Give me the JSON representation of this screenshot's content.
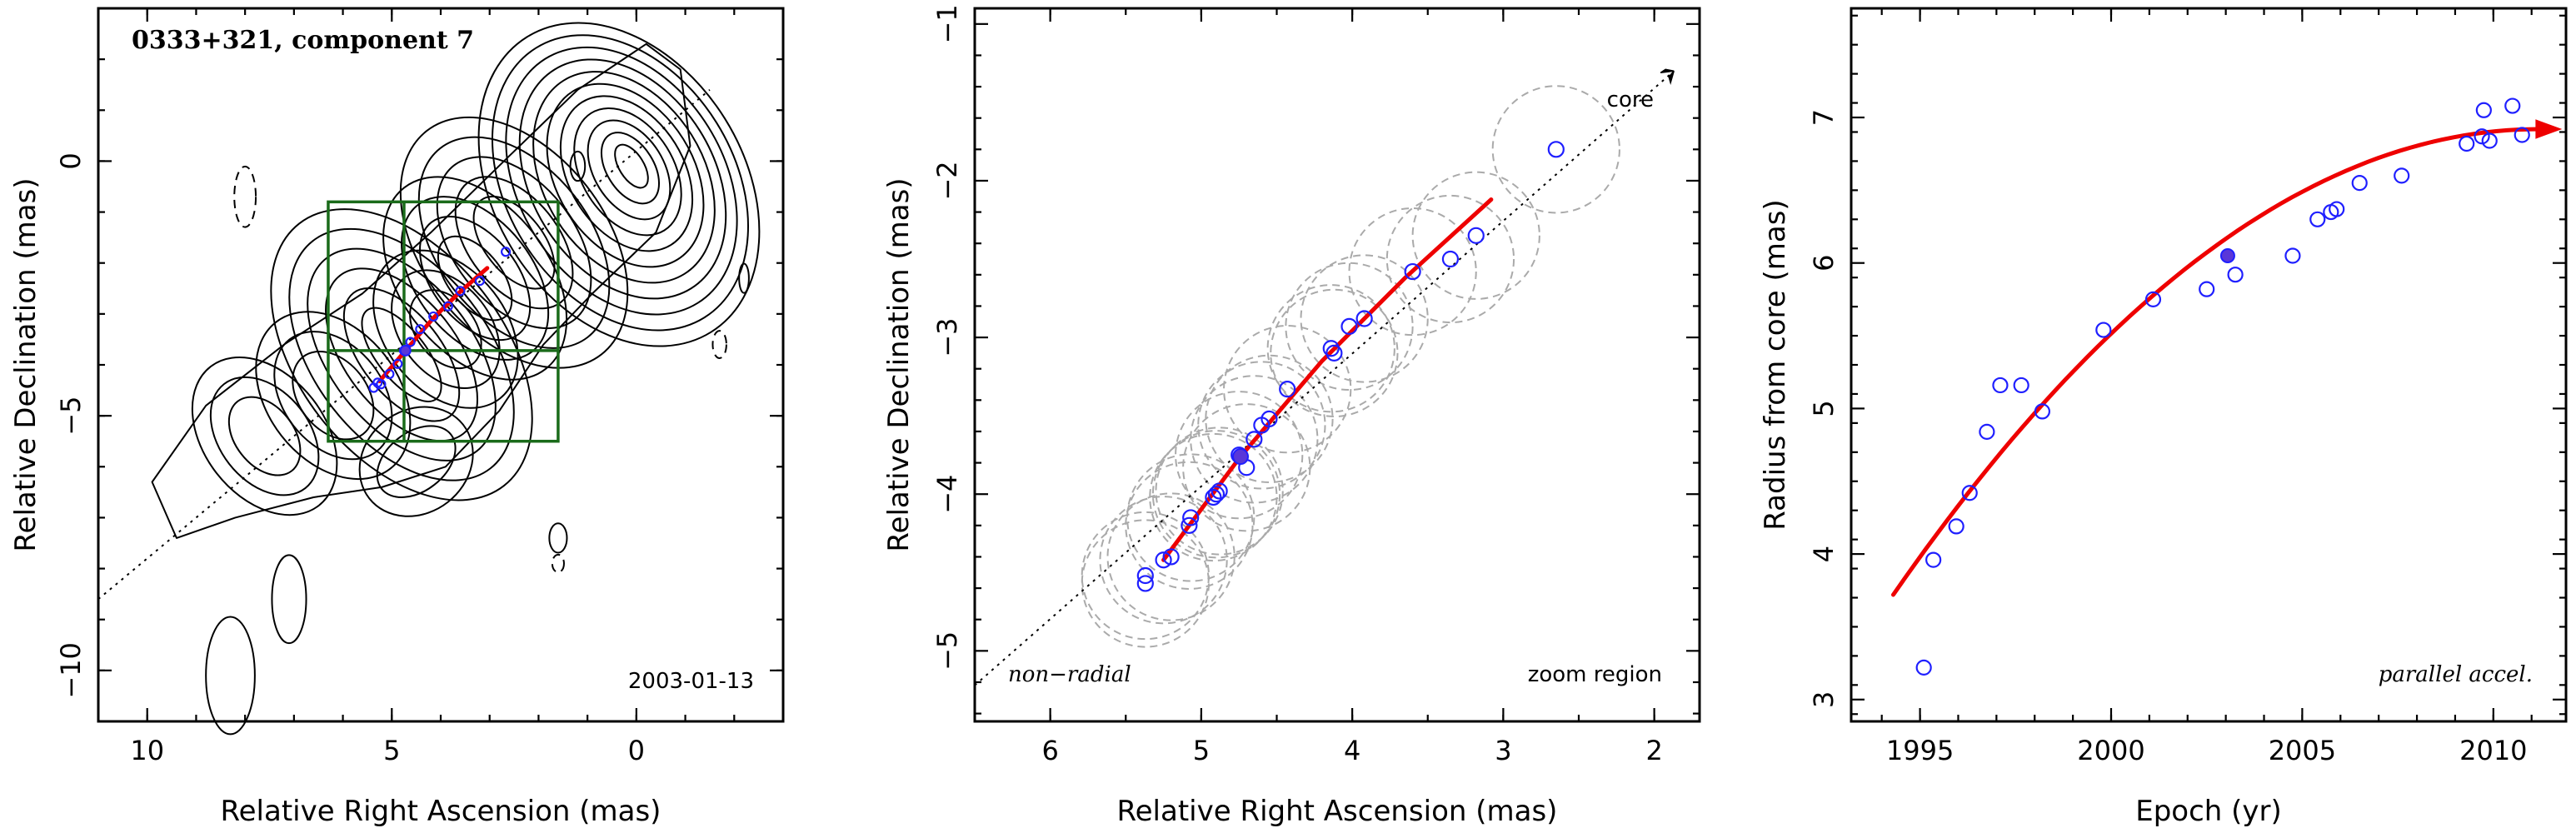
{
  "colors": {
    "points": "#1f1fff",
    "fit": "#ee0000",
    "zoom_box": "#1a6b1a",
    "error_circles": "#aaaaaa"
  },
  "chart_data": [
    {
      "type": "contour",
      "title": "0333+321, component 7",
      "date_label": "2003-01-13",
      "xlabel": "Relative Right Ascension (mas)",
      "ylabel": "Relative Declination (mas)",
      "xlim": [
        11,
        -3
      ],
      "ylim": [
        -11,
        3
      ],
      "xticks": [
        10,
        5,
        0
      ],
      "yticks": [
        0,
        -5,
        -10
      ],
      "zoom_box": {
        "x": [
          6.3,
          1.6
        ],
        "y": [
          -5.5,
          -0.8
        ]
      },
      "positions": [
        [
          5.37,
          -4.45
        ],
        [
          5.29,
          -4.35
        ],
        [
          5.22,
          -4.38
        ],
        [
          5.05,
          -4.18
        ],
        [
          4.88,
          -3.98
        ],
        [
          4.75,
          -3.72
        ],
        [
          4.62,
          -3.55
        ],
        [
          4.42,
          -3.3
        ],
        [
          4.15,
          -3.05
        ],
        [
          3.85,
          -2.85
        ],
        [
          3.6,
          -2.55
        ],
        [
          3.2,
          -2.35
        ],
        [
          2.67,
          -1.78
        ]
      ],
      "highlight": [
        4.72,
        -3.72
      ],
      "fit_path": [
        [
          5.25,
          -4.32
        ],
        [
          4.72,
          -3.72
        ],
        [
          4.15,
          -3.08
        ],
        [
          3.62,
          -2.58
        ],
        [
          3.05,
          -2.1
        ]
      ]
    },
    {
      "type": "scatter",
      "xlabel": "Relative Right Ascension (mas)",
      "ylabel": "Relative Declination (mas)",
      "xlim": [
        6.5,
        1.7
      ],
      "ylim": [
        -5.45,
        -0.9
      ],
      "xticks": [
        6,
        5,
        4,
        3,
        2
      ],
      "yticks": [
        -1,
        -2,
        -3,
        -4,
        -5
      ],
      "annotations": {
        "core": "core",
        "left": "non−radial",
        "right": "zoom region"
      },
      "points": [
        [
          5.37,
          -4.52
        ],
        [
          5.37,
          -4.57
        ],
        [
          5.25,
          -4.42
        ],
        [
          5.2,
          -4.4
        ],
        [
          5.08,
          -4.2
        ],
        [
          5.07,
          -4.15
        ],
        [
          4.92,
          -4.02
        ],
        [
          4.9,
          -4.0
        ],
        [
          4.88,
          -3.98
        ],
        [
          4.75,
          -3.75
        ],
        [
          4.7,
          -3.83
        ],
        [
          4.65,
          -3.65
        ],
        [
          4.6,
          -3.56
        ],
        [
          4.55,
          -3.52
        ],
        [
          4.43,
          -3.33
        ],
        [
          4.14,
          -3.07
        ],
        [
          4.12,
          -3.1
        ],
        [
          4.02,
          -2.93
        ],
        [
          3.92,
          -2.88
        ],
        [
          3.6,
          -2.58
        ],
        [
          3.35,
          -2.5
        ],
        [
          3.18,
          -2.35
        ],
        [
          2.65,
          -1.8
        ]
      ],
      "highlight": [
        4.74,
        -3.76
      ],
      "fit_path": [
        [
          5.25,
          -4.42
        ],
        [
          4.74,
          -3.76
        ],
        [
          4.2,
          -3.15
        ],
        [
          3.65,
          -2.62
        ],
        [
          3.08,
          -2.12
        ]
      ],
      "error_radius": 0.42,
      "ridge": {
        "from": [
          6.5,
          -5.22
        ],
        "to": [
          1.87,
          -1.3
        ]
      }
    },
    {
      "type": "scatter",
      "xlabel": "Epoch (yr)",
      "ylabel": "Radius from core (mas)",
      "xlim": [
        1993.2,
        2011.9
      ],
      "ylim": [
        2.85,
        7.75
      ],
      "xticks": [
        1995,
        2000,
        2005,
        2010
      ],
      "yticks": [
        3,
        4,
        5,
        6,
        7
      ],
      "annotation": "parallel accel.",
      "x": [
        1995.1,
        1995.35,
        1995.95,
        1996.3,
        1996.75,
        1997.1,
        1997.65,
        1998.2,
        1999.8,
        2001.1,
        2002.5,
        2003.25,
        2004.75,
        2005.4,
        2005.75,
        2005.9,
        2006.5,
        2007.6,
        2009.3,
        2009.7,
        2009.75,
        2009.9,
        2010.5,
        2010.75
      ],
      "y": [
        3.22,
        3.96,
        4.19,
        4.42,
        4.84,
        5.16,
        5.16,
        4.98,
        5.54,
        5.75,
        5.82,
        5.92,
        6.05,
        6.3,
        6.35,
        6.37,
        6.55,
        6.6,
        6.82,
        6.87,
        7.05,
        6.84,
        7.08,
        6.88
      ],
      "highlight": [
        2003.05,
        6.05
      ],
      "fit": {
        "x0": 1994.3,
        "x1": 2011.2,
        "y0": 3.72,
        "vertex_x": 2011.2,
        "vertex_y": 6.92
      }
    }
  ]
}
